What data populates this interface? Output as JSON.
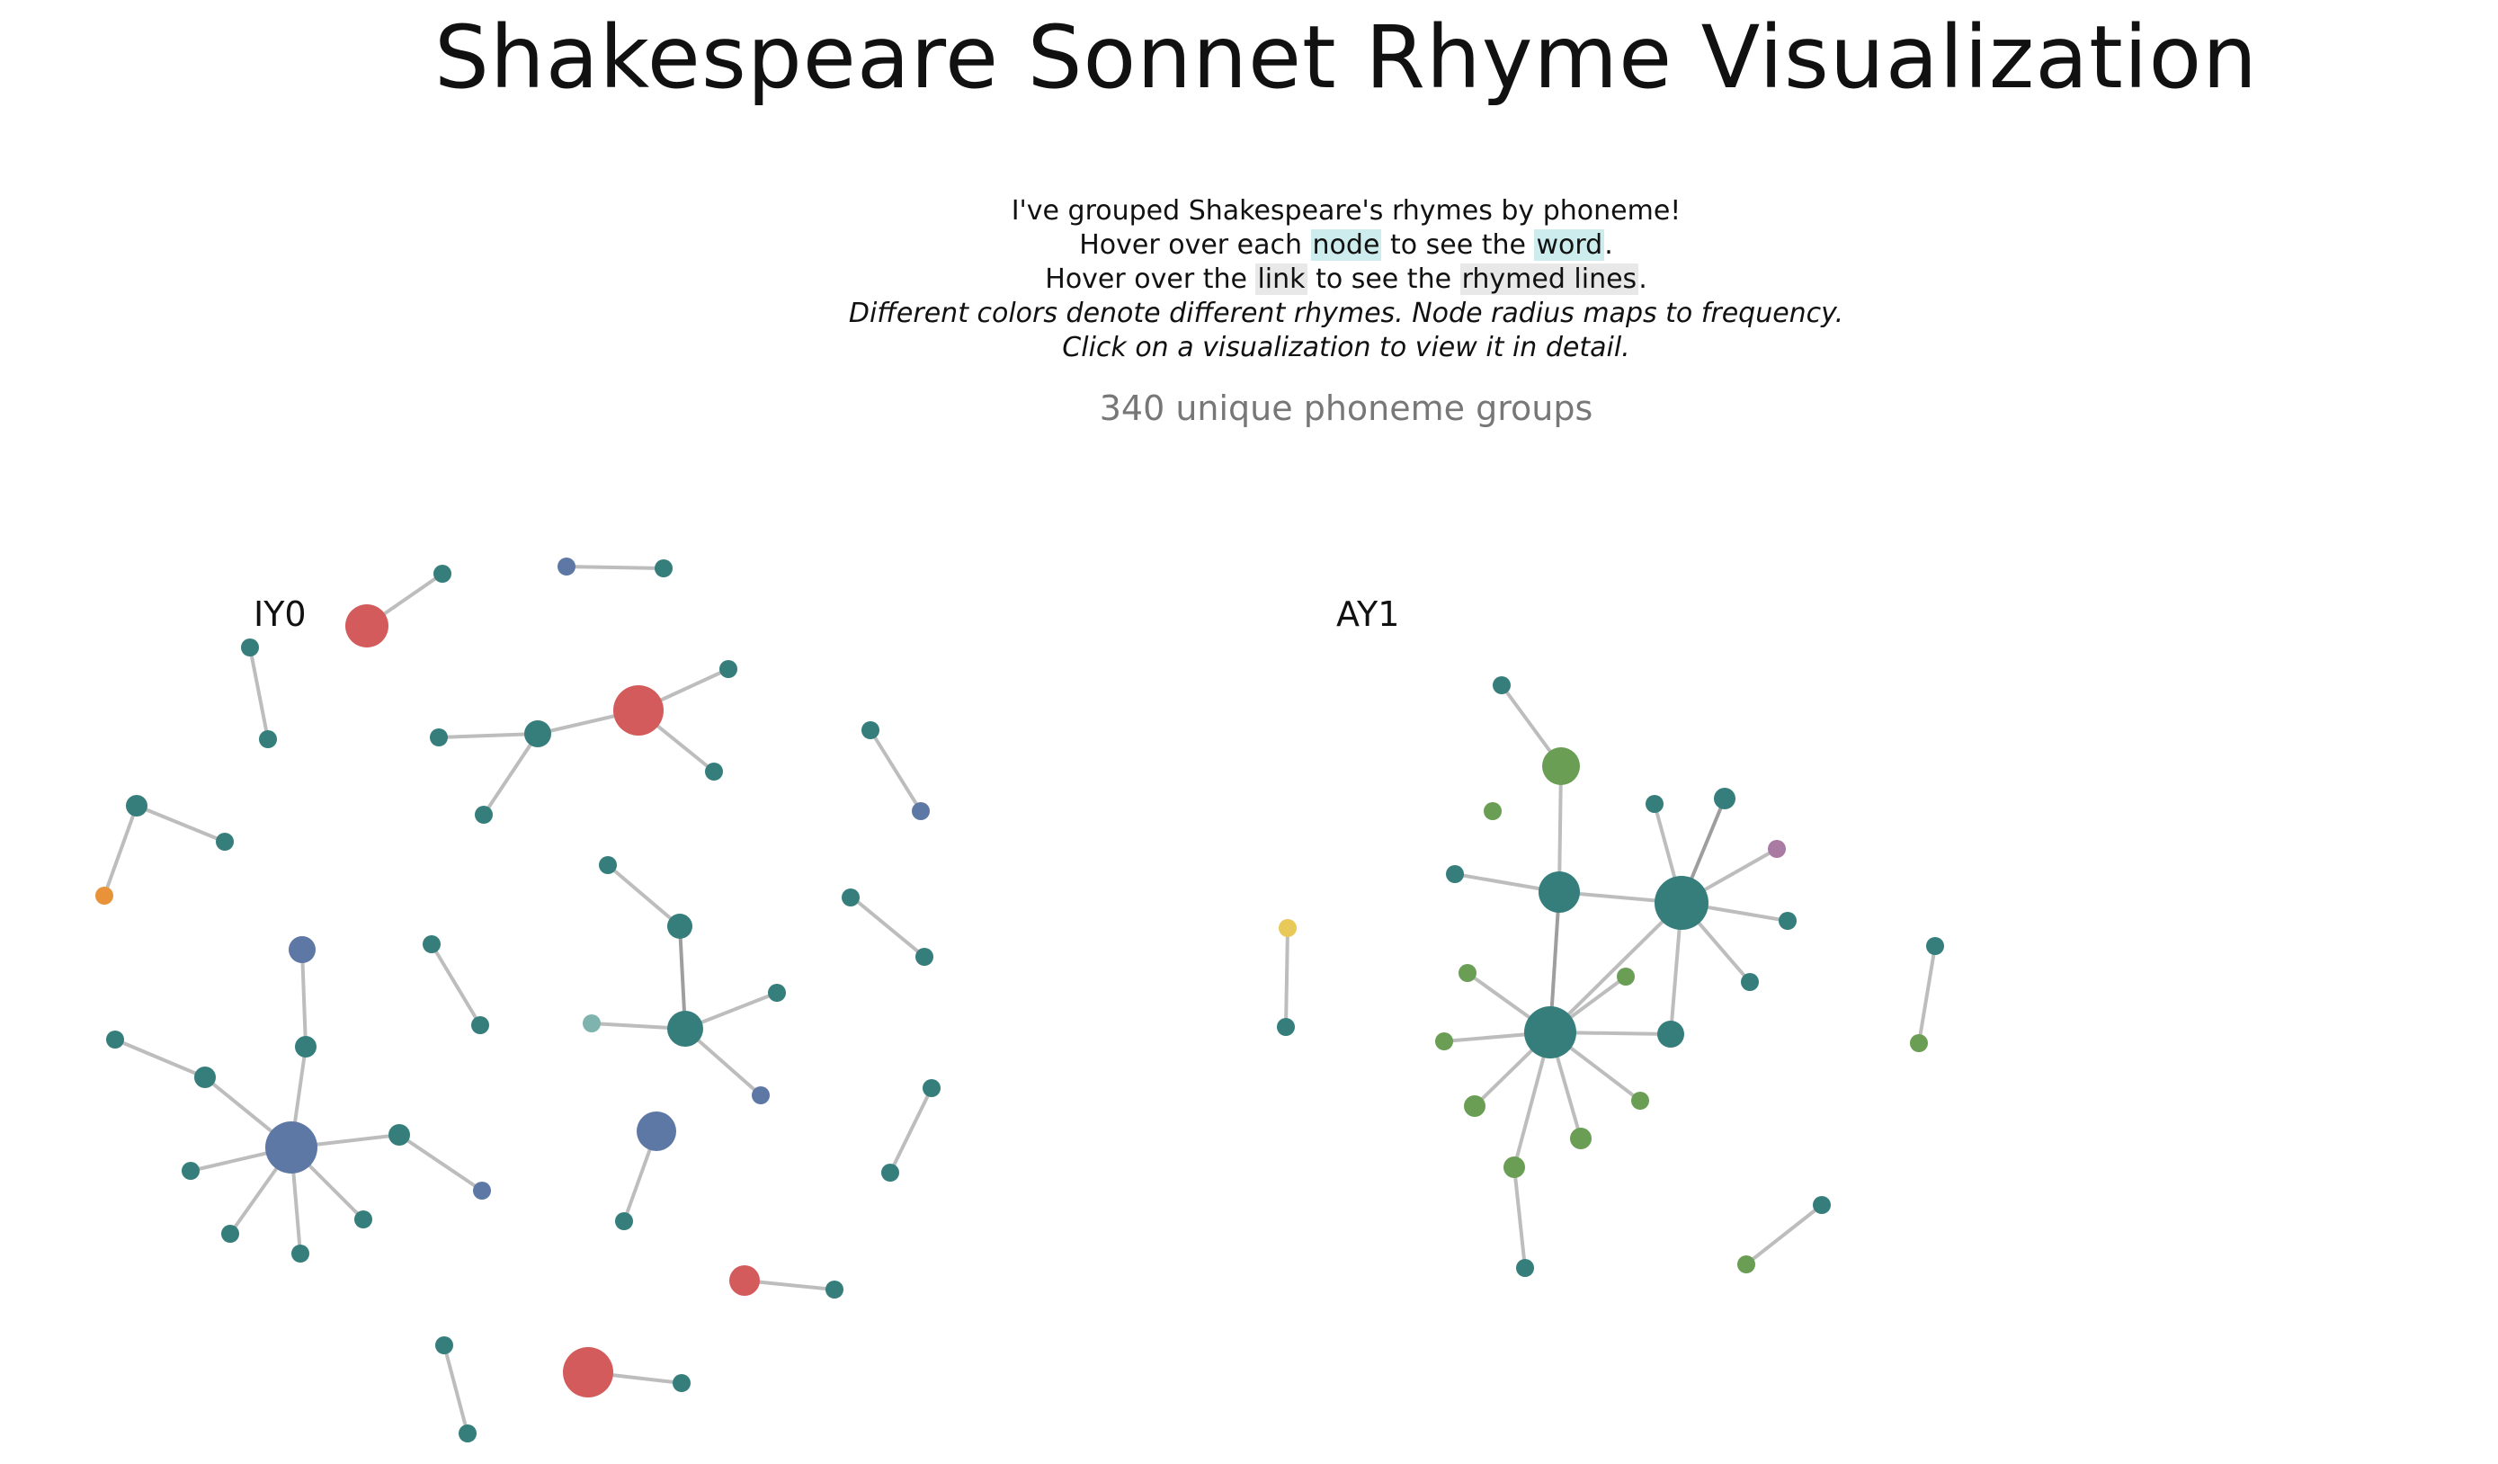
{
  "title": "Shakespeare Sonnet Rhyme Visualization",
  "intro": {
    "line1": "I've grouped Shakespeare's rhymes by phoneme!",
    "line2_pre": "Hover over each ",
    "line2_hl1": "node",
    "line2_mid": " to see the ",
    "line2_hl2": "word",
    "line2_post": ".",
    "line3_pre": "Hover over the ",
    "line3_hl1": "link",
    "line3_mid": " to see the ",
    "line3_hl2": "rhymed lines",
    "line3_post": ".",
    "line4": "Different colors denote different rhymes. Node radius maps to frequency.",
    "line5": "Click on a visualization to view it in detail."
  },
  "count_label": "340 unique phoneme groups",
  "colors": {
    "teal": "#357e7c",
    "blue": "#5e78a6",
    "red": "#d45b5b",
    "orange": "#e8923a",
    "green": "#6a9e54",
    "yellow": "#e8c95a",
    "purple": "#a97aa2",
    "lightteal": "#7fb3ad"
  },
  "visualizations": [
    {
      "phoneme": "IY0"
    },
    {
      "phoneme": "AY1"
    }
  ]
}
